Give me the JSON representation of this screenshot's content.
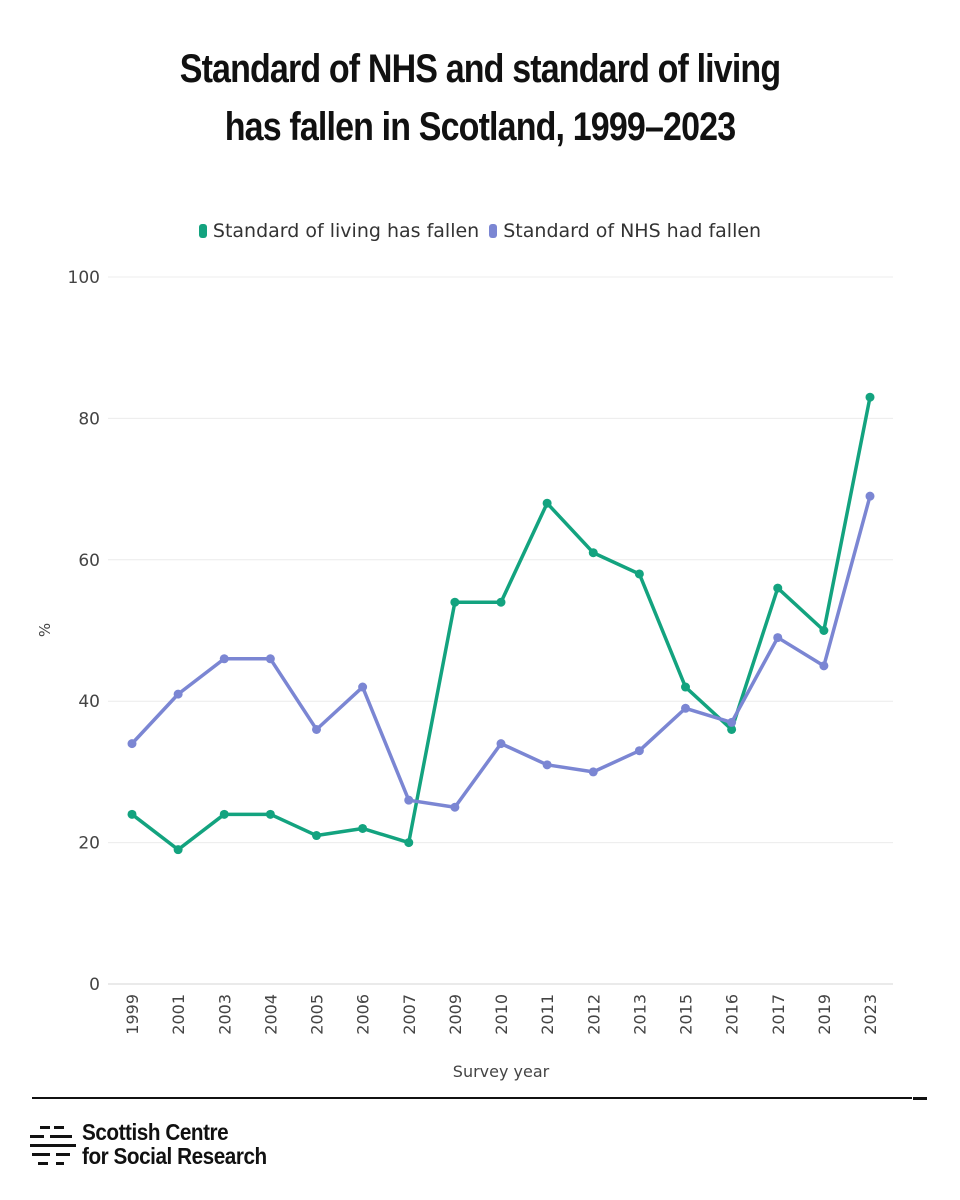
{
  "header": {
    "title_line1": "Standard of NHS and standard of living",
    "title_line2": "has fallen in Scotland, 1999–2023"
  },
  "legend": [
    {
      "label": "Standard of living has fallen",
      "color": "#13a37f"
    },
    {
      "label": "Standard of NHS had fallen",
      "color": "#7b86d3"
    }
  ],
  "chart_data": {
    "type": "line",
    "title": "Standard of NHS and standard of living has fallen in Scotland, 1999–2023",
    "xlabel": "Survey year",
    "ylabel": "%",
    "ylim": [
      0,
      100
    ],
    "yticks": [
      0,
      20,
      40,
      60,
      80,
      100
    ],
    "grid": true,
    "legend_position": "top",
    "categories": [
      "1999",
      "2001",
      "2003",
      "2004",
      "2005",
      "2006",
      "2007",
      "2009",
      "2010",
      "2011",
      "2012",
      "2013",
      "2015",
      "2016",
      "2017",
      "2019",
      "2023"
    ],
    "series": [
      {
        "name": "Standard of living has fallen",
        "color": "#13a37f",
        "values": [
          24,
          19,
          24,
          24,
          21,
          22,
          20,
          54,
          54,
          68,
          61,
          58,
          42,
          36,
          56,
          50,
          83
        ]
      },
      {
        "name": "Standard of NHS had fallen",
        "color": "#7b86d3",
        "values": [
          34,
          41,
          46,
          46,
          36,
          42,
          26,
          25,
          34,
          31,
          30,
          33,
          39,
          37,
          49,
          45,
          69
        ]
      }
    ]
  },
  "footer": {
    "org_line1": "Scottish Centre",
    "org_line2": "for Social Research"
  }
}
